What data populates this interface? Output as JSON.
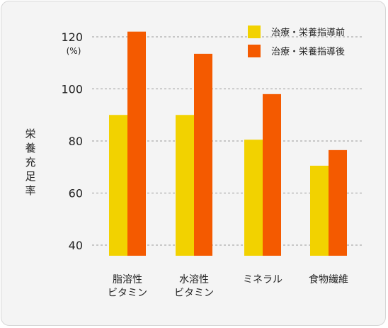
{
  "colors": {
    "before": "#f2d200",
    "after": "#f45a00",
    "grid": "#9a9a9a",
    "background": "#f4f4f4"
  },
  "chart_data": {
    "type": "bar",
    "ylabel": "栄養充足率",
    "yunit": "(%)",
    "ylim": [
      36,
      125
    ],
    "yticks": [
      40,
      60,
      80,
      100,
      120
    ],
    "grid": true,
    "legend_position": "top-right",
    "categories": [
      [
        "脂溶性",
        "ビタミン"
      ],
      [
        "水溶性",
        "ビタミン"
      ],
      [
        "ミネラル"
      ],
      [
        "食物繊維"
      ]
    ],
    "series": [
      {
        "name": "治療・栄養指導前",
        "values": [
          90,
          90,
          80.5,
          70.5
        ]
      },
      {
        "name": "治療・栄養指導後",
        "values": [
          122,
          113.5,
          98,
          76.5
        ]
      }
    ]
  }
}
